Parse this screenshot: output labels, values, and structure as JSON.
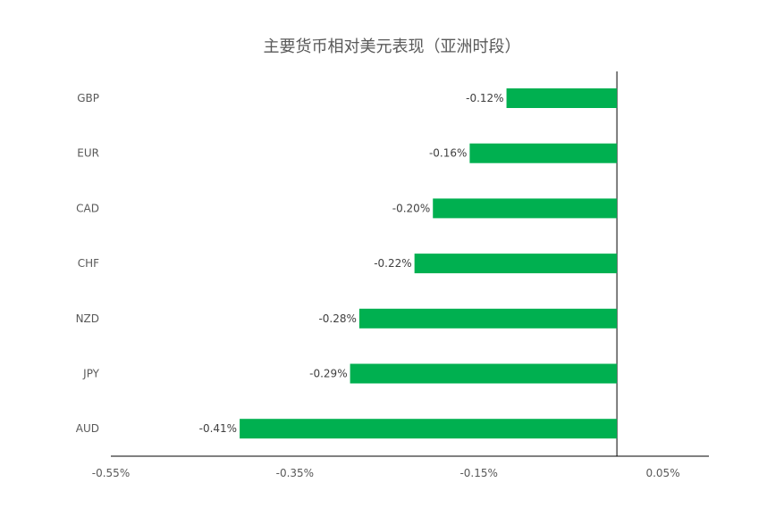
{
  "chart_data": {
    "type": "bar",
    "orientation": "horizontal",
    "title": "主要货币相对美元表现（亚洲时段）",
    "categories": [
      "GBP",
      "EUR",
      "CAD",
      "CHF",
      "NZD",
      "JPY",
      "AUD"
    ],
    "values": [
      -0.12,
      -0.16,
      -0.2,
      -0.22,
      -0.28,
      -0.29,
      -0.41
    ],
    "data_labels": [
      "-0.12%",
      "-0.16%",
      "-0.20%",
      "-0.22%",
      "-0.28%",
      "-0.29%",
      "-0.41%"
    ],
    "xlim": [
      -0.55,
      0.1
    ],
    "xticks": [
      -0.55,
      -0.35,
      -0.15,
      0.05
    ],
    "xtick_labels": [
      "-0.55%",
      "-0.35%",
      "-0.15%",
      "0.05%"
    ],
    "xlabel": "",
    "ylabel": "",
    "grid": false,
    "legend": "none",
    "bar_color": "#00b050",
    "axis_color": "#000000"
  }
}
